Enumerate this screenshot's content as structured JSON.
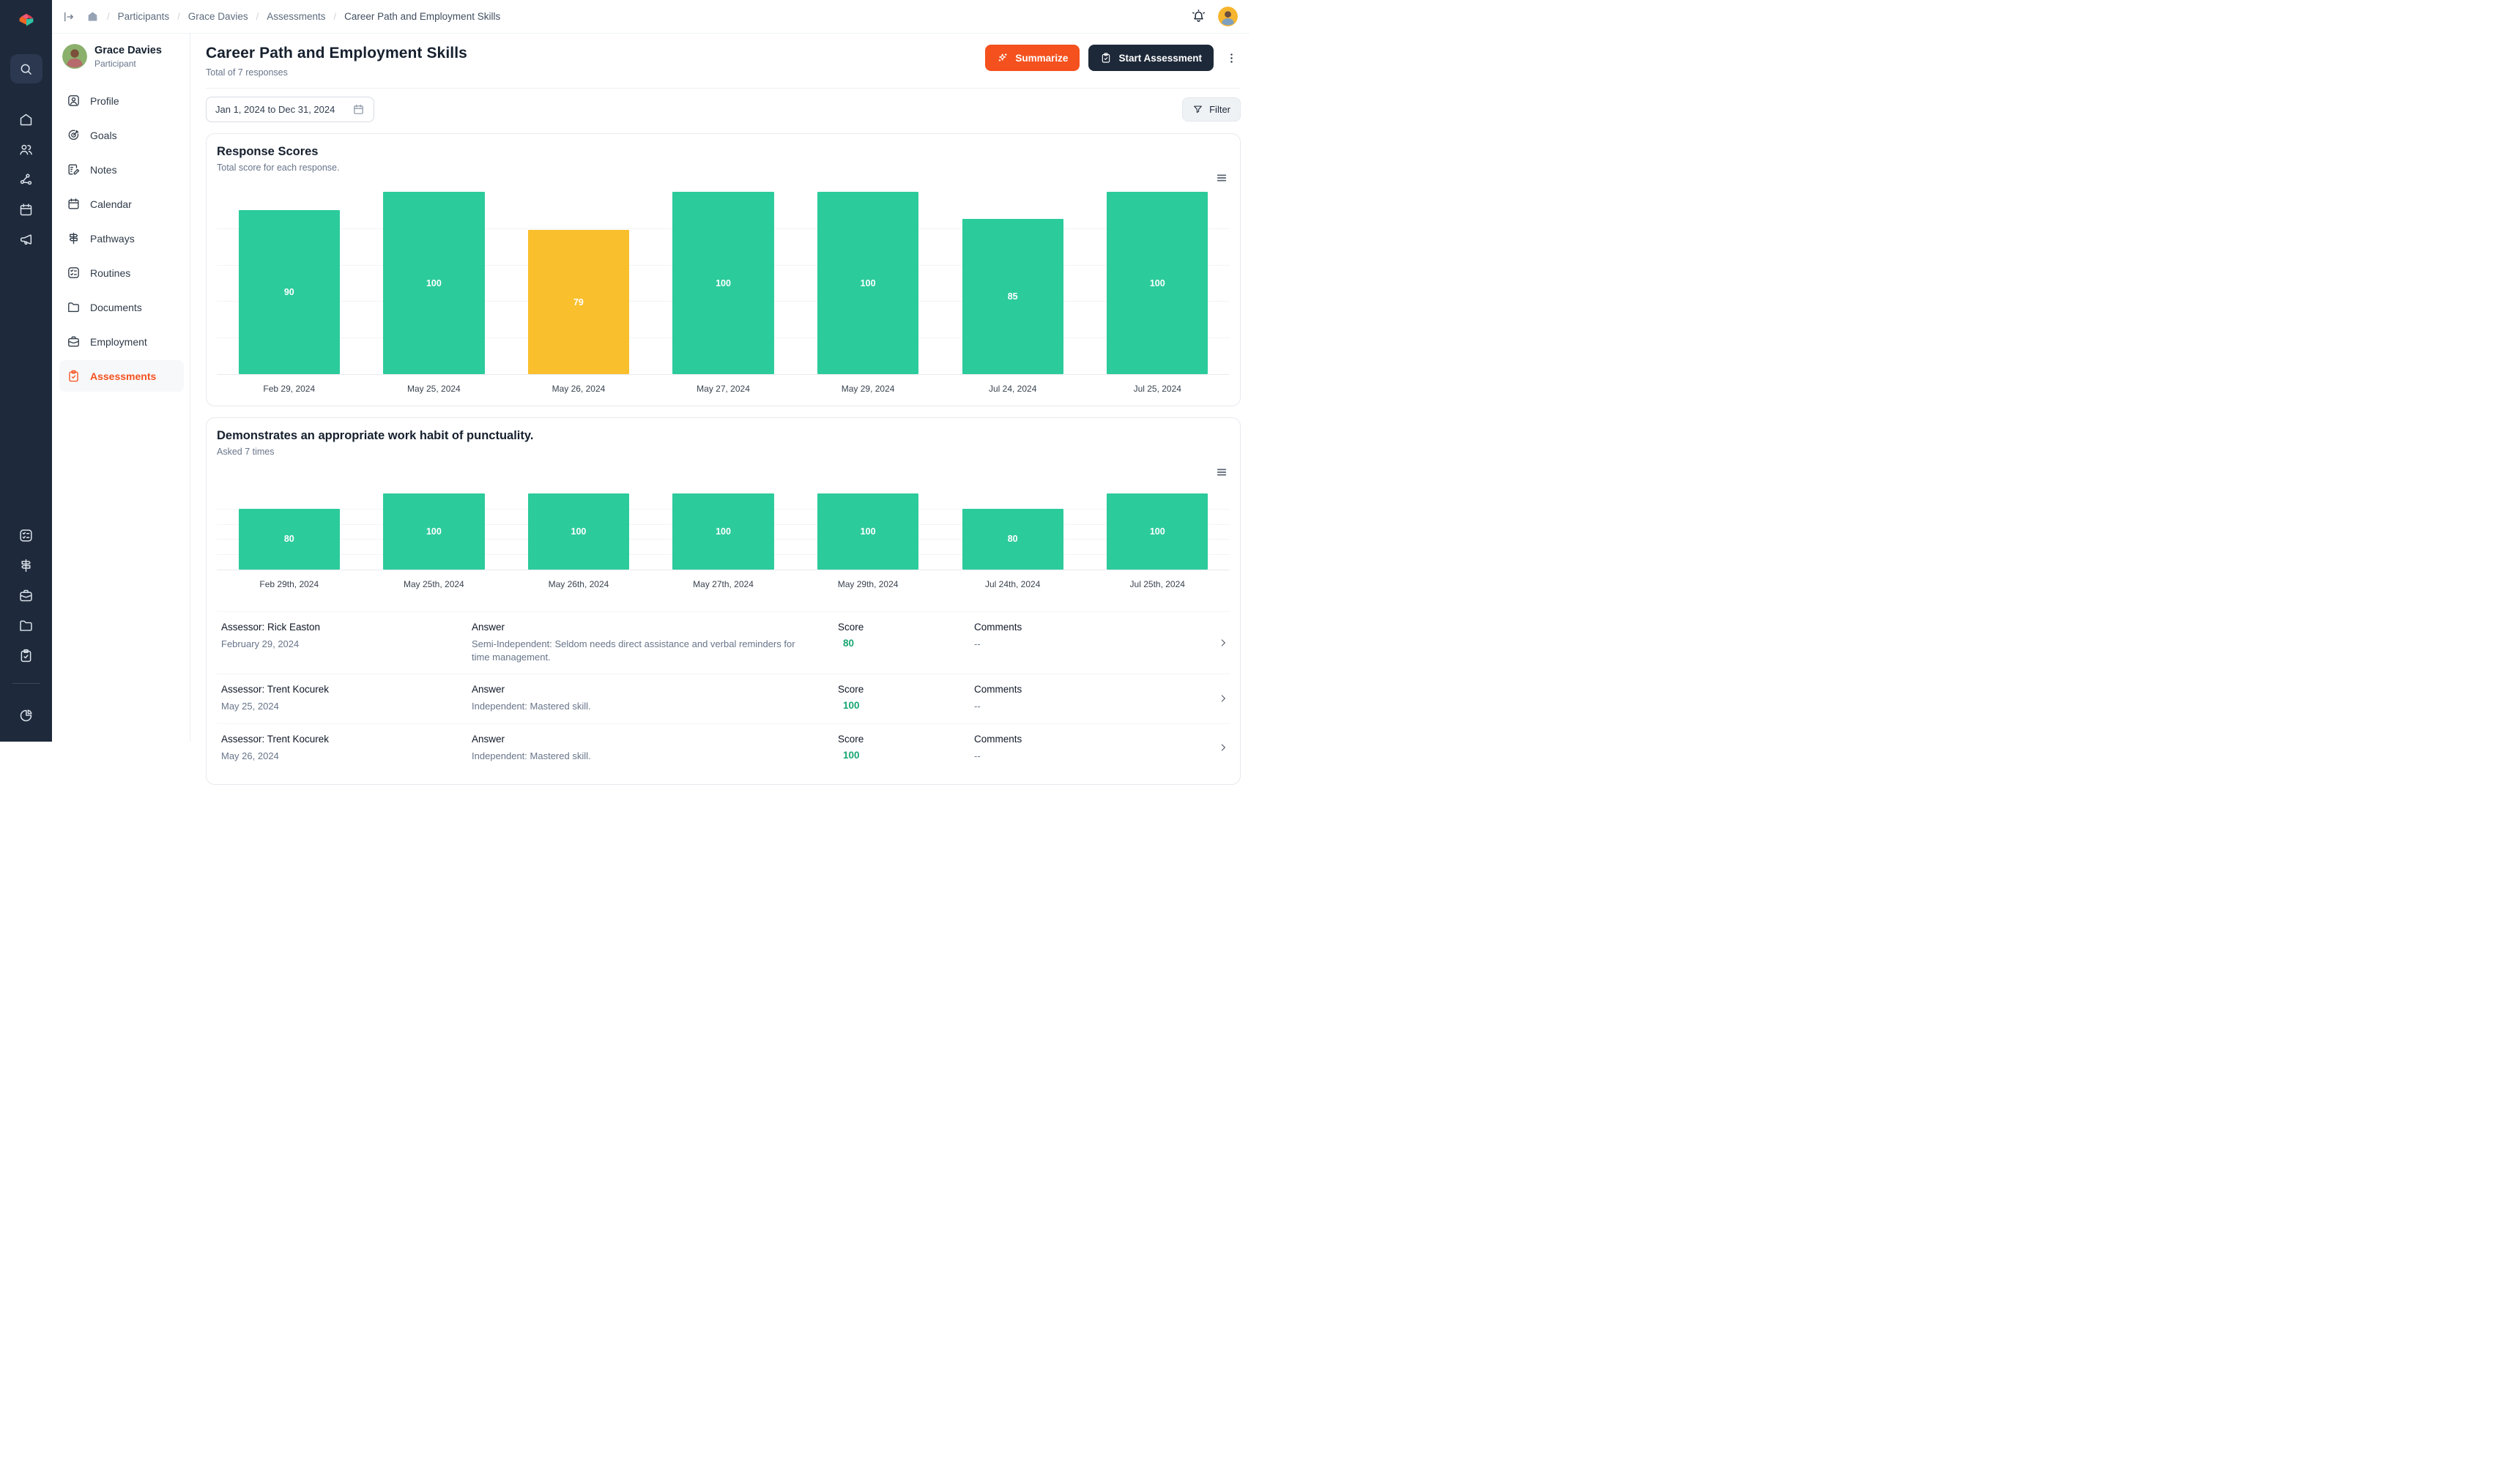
{
  "colors": {
    "rail_bg": "#1E2A3B",
    "accent_orange": "#F4511E",
    "dark_button": "#1D2939",
    "bar_green": "#2CCB9B",
    "bar_amber": "#F9BF2C",
    "score_green": "#17A673"
  },
  "rail": {
    "logo_icon": "cube-logo",
    "search_icon": "search",
    "top_icons": [
      "home",
      "users",
      "share",
      "calendar",
      "megaphone"
    ],
    "bottom_icons": [
      "checklist",
      "signpost",
      "briefcase",
      "folder",
      "clipboard"
    ],
    "footer_icon": "pie"
  },
  "topbar": {
    "collapse_icon": "collapse",
    "home_icon": "home-filled",
    "breadcrumb": {
      "items": [
        "Participants",
        "Grace Davies",
        "Assessments"
      ],
      "current": "Career Path and Employment Skills"
    },
    "bell_icon": "bell"
  },
  "sidebar": {
    "user": {
      "name": "Grace Davies",
      "role": "Participant"
    },
    "items": [
      {
        "label": "Profile",
        "icon": "user-square",
        "active": false
      },
      {
        "label": "Goals",
        "icon": "target",
        "active": false
      },
      {
        "label": "Notes",
        "icon": "note-edit",
        "active": false
      },
      {
        "label": "Calendar",
        "icon": "calendar",
        "active": false
      },
      {
        "label": "Pathways",
        "icon": "signpost",
        "active": false
      },
      {
        "label": "Routines",
        "icon": "checklist",
        "active": false
      },
      {
        "label": "Documents",
        "icon": "folder",
        "active": false
      },
      {
        "label": "Employment",
        "icon": "briefcase",
        "active": false
      },
      {
        "label": "Assessments",
        "icon": "clipboard",
        "active": true
      }
    ]
  },
  "header": {
    "title": "Career Path and Employment Skills",
    "subtitle": "Total of 7 responses",
    "summarize_label": "Summarize",
    "start_label": "Start Assessment"
  },
  "filters": {
    "date_range": "Jan 1, 2024 to Dec 31, 2024",
    "filter_label": "Filter"
  },
  "chart_data": [
    {
      "type": "bar",
      "title": "Response Scores",
      "subtitle": "Total score for each response.",
      "categories": [
        "Feb 29, 2024",
        "May 25, 2024",
        "May 26, 2024",
        "May 27, 2024",
        "May 29, 2024",
        "Jul 24, 2024",
        "Jul 25, 2024"
      ],
      "values": [
        90,
        100,
        79,
        100,
        100,
        85,
        100
      ],
      "bar_colors": [
        "#2CCB9B",
        "#2CCB9B",
        "#F9BF2C",
        "#2CCB9B",
        "#2CCB9B",
        "#2CCB9B",
        "#2CCB9B"
      ],
      "ylim": [
        0,
        100
      ],
      "grid": true,
      "value_labels": true,
      "legend": "none"
    },
    {
      "type": "bar",
      "title": "Demonstrates an appropriate work habit of punctuality.",
      "subtitle": "Asked 7 times",
      "categories": [
        "Feb 29th, 2024",
        "May 25th, 2024",
        "May 26th, 2024",
        "May 27th, 2024",
        "May 29th, 2024",
        "Jul 24th, 2024",
        "Jul 25th, 2024"
      ],
      "values": [
        80,
        100,
        100,
        100,
        100,
        80,
        100
      ],
      "bar_colors": [
        "#2CCB9B",
        "#2CCB9B",
        "#2CCB9B",
        "#2CCB9B",
        "#2CCB9B",
        "#2CCB9B",
        "#2CCB9B"
      ],
      "ylim": [
        0,
        100
      ],
      "grid": true,
      "value_labels": true,
      "legend": "none"
    }
  ],
  "table": {
    "answer_label": "Answer",
    "score_label": "Score",
    "comments_label": "Comments",
    "rows": [
      {
        "assessor": "Assessor: Rick Easton",
        "date": "February 29, 2024",
        "answer": "Semi-Independent: Seldom needs direct assistance and verbal reminders for time management.",
        "score": "80",
        "comments": "--"
      },
      {
        "assessor": "Assessor: Trent Kocurek",
        "date": "May 25, 2024",
        "answer": "Independent: Mastered skill.",
        "score": "100",
        "comments": "--"
      },
      {
        "assessor": "Assessor: Trent Kocurek",
        "date": "May 26, 2024",
        "answer": "Independent: Mastered skill.",
        "score": "100",
        "comments": "--"
      }
    ]
  }
}
